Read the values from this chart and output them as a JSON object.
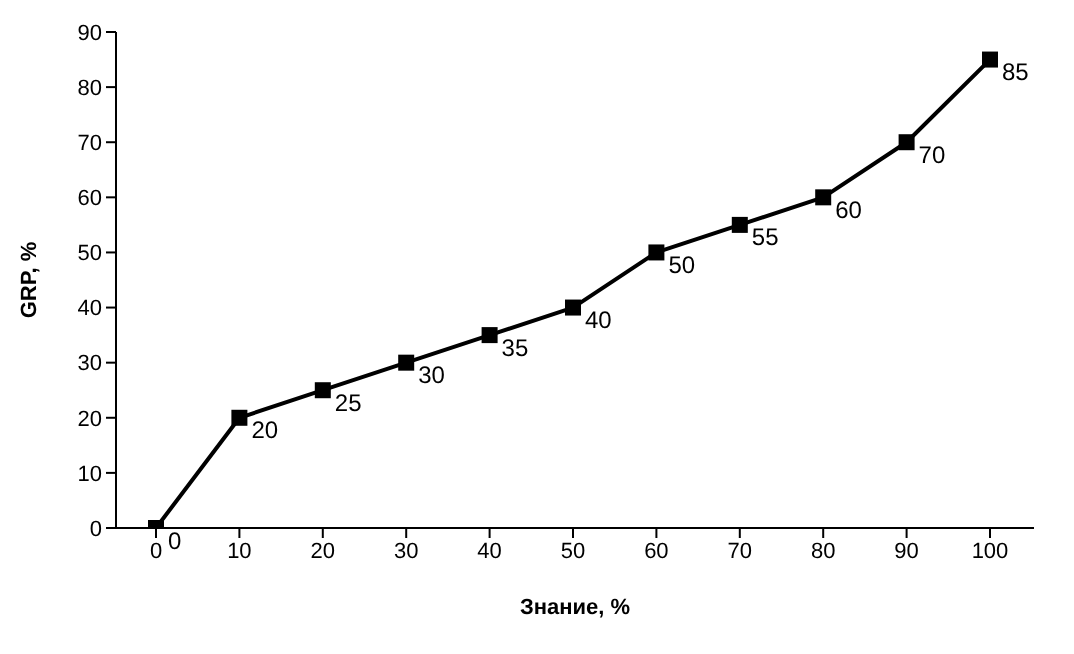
{
  "chart_data": {
    "type": "line",
    "xlabel": "Знание, %",
    "ylabel": "GRP, %",
    "categories": [
      "0",
      "10",
      "20",
      "30",
      "40",
      "50",
      "60",
      "70",
      "80",
      "90",
      "100"
    ],
    "series": [
      {
        "color": "#000000",
        "values": [
          0,
          20,
          25,
          30,
          35,
          40,
          50,
          55,
          60,
          70,
          85
        ]
      }
    ],
    "ylim": [
      0,
      90
    ],
    "yticks": [
      0,
      10,
      20,
      30,
      40,
      50,
      60,
      70,
      80,
      90
    ],
    "grid": false,
    "legend": false,
    "marker": "square",
    "line_style": "solid",
    "data_labels": true
  }
}
